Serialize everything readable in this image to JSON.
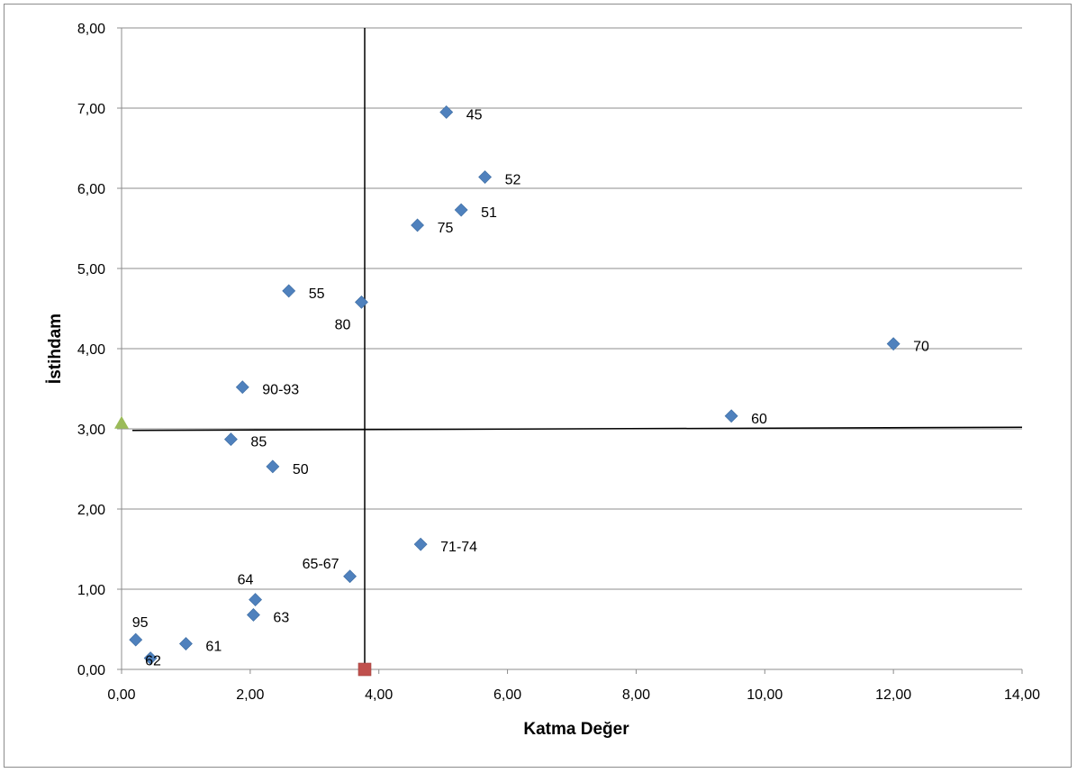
{
  "chart_data": {
    "type": "scatter",
    "xlabel": "Katma Değer",
    "ylabel": "İstihdam",
    "xlim": [
      0,
      14
    ],
    "ylim": [
      0,
      8
    ],
    "x_ticks": [
      "0,00",
      "2,00",
      "4,00",
      "6,00",
      "8,00",
      "10,00",
      "12,00",
      "14,00"
    ],
    "y_ticks": [
      "0,00",
      "1,00",
      "2,00",
      "3,00",
      "4,00",
      "5,00",
      "6,00",
      "7,00",
      "8,00"
    ],
    "grid": "horizontal",
    "series": [
      {
        "marker": "diamond",
        "color": "#4f81bd",
        "points": [
          {
            "label": "45",
            "x": 5.05,
            "y": 6.95
          },
          {
            "label": "52",
            "x": 5.65,
            "y": 6.14
          },
          {
            "label": "51",
            "x": 5.28,
            "y": 5.73
          },
          {
            "label": "75",
            "x": 4.6,
            "y": 5.54
          },
          {
            "label": "55",
            "x": 2.6,
            "y": 4.72
          },
          {
            "label": "80",
            "x": 3.73,
            "y": 4.58
          },
          {
            "label": "70",
            "x": 12.0,
            "y": 4.06
          },
          {
            "label": "90-93",
            "x": 1.88,
            "y": 3.52
          },
          {
            "label": "60",
            "x": 9.48,
            "y": 3.16
          },
          {
            "label": "85",
            "x": 1.7,
            "y": 2.87
          },
          {
            "label": "50",
            "x": 2.35,
            "y": 2.53
          },
          {
            "label": "71-74",
            "x": 4.65,
            "y": 1.56
          },
          {
            "label": "65-67",
            "x": 3.55,
            "y": 1.16
          },
          {
            "label": "64",
            "x": 2.08,
            "y": 0.87
          },
          {
            "label": "63",
            "x": 2.05,
            "y": 0.68
          },
          {
            "label": "95",
            "x": 0.22,
            "y": 0.37
          },
          {
            "label": "61",
            "x": 1.0,
            "y": 0.32
          },
          {
            "label": "62",
            "x": 0.45,
            "y": 0.14
          }
        ]
      },
      {
        "marker": "square",
        "color": "#c0504d",
        "points": [
          {
            "x": 3.78,
            "y": 0.0
          }
        ]
      },
      {
        "marker": "triangle",
        "color": "#9bbb59",
        "points": [
          {
            "x": 0.0,
            "y": 3.07
          }
        ]
      }
    ],
    "reference_lines": [
      {
        "orientation": "vertical",
        "x": 3.78,
        "color": "#000000"
      },
      {
        "orientation": "horizontal",
        "y_start": 2.98,
        "y_end": 3.02,
        "color": "#000000"
      }
    ]
  }
}
